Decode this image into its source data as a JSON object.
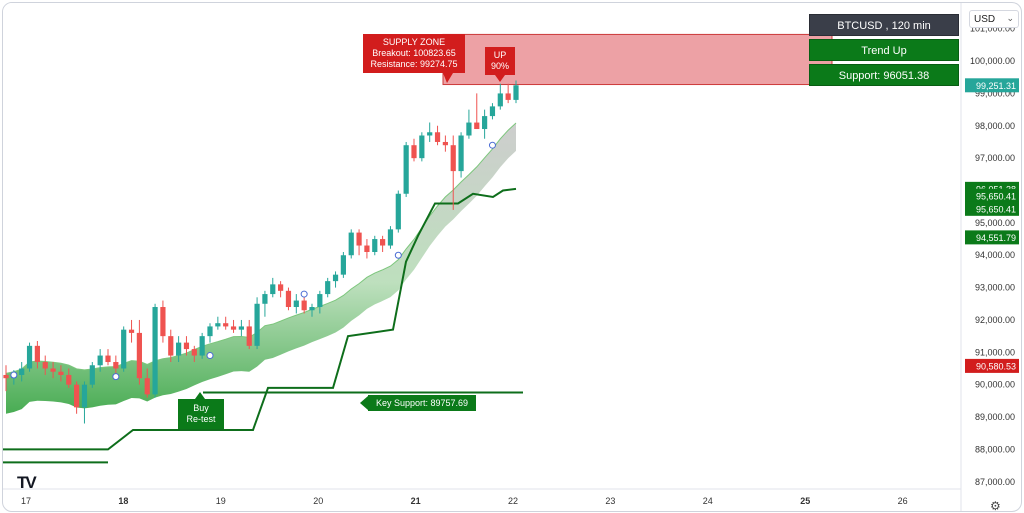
{
  "header": {
    "currency_select": "USD",
    "symbol_title": "BTCUSD , 120 min",
    "trend_label": "Trend Up",
    "support_label": "Support: 96051.38"
  },
  "annotations": {
    "supply_zone": {
      "title": "SUPPLY ZONE",
      "line1": "Breakout: 100823.65",
      "line2": "Resistance: 99274.75"
    },
    "up_badge": {
      "line1": "UP",
      "line2": "90%"
    },
    "buy_retest": {
      "line1": "Buy",
      "line2": "Re-test"
    },
    "key_support": "Key Support: 89757.69"
  },
  "colors": {
    "up_candle": "#26a69a",
    "down_candle": "#ef5350",
    "supply_fill": "#e8898f",
    "green_label": "#0b7a19",
    "red_label": "#d21d1d",
    "price_label_teal": "#26a69a"
  },
  "logo": "TV",
  "icons": {
    "settings": "gear-icon",
    "dropdown": "chevron-down-icon"
  },
  "chart_data": {
    "type": "candlestick",
    "symbol": "BTCUSD",
    "timeframe": "120 min",
    "x_tick_labels": [
      "17",
      "18",
      "19",
      "20",
      "21",
      "22",
      "23",
      "24",
      "25",
      "26"
    ],
    "y_tick_labels": [
      "87,000.00",
      "88,000.00",
      "89,000.00",
      "90,000.00",
      "91,000.00",
      "92,000.00",
      "93,000.00",
      "94,000.00",
      "95,000.00",
      "96,000.00",
      "97,000.00",
      "98,000.00",
      "99,000.00",
      "100,000.00",
      "101,000.00"
    ],
    "ylim": [
      86900,
      101300
    ],
    "price_labels": [
      {
        "text": "99,251.31",
        "value": 99251.31,
        "color": "#26a69a"
      },
      {
        "text": "96,051.38",
        "value": 96051.38,
        "color": "#0b7a19"
      },
      {
        "text": "95,650.41",
        "value": 95650.41,
        "color": "#0b7a19"
      },
      {
        "text": "95,650.41",
        "value": 95650.41,
        "color": "#0b7a19"
      },
      {
        "text": "94,551.79",
        "value": 94551.79,
        "color": "#0b7a19"
      },
      {
        "text": "90,580.53",
        "value": 90580.53,
        "color": "#d21d1d"
      }
    ],
    "supply_zone": {
      "low": 99274.75,
      "high": 100823.65
    },
    "key_support": 89757.69,
    "candles": [
      [
        90300,
        90600,
        89800,
        90200
      ],
      [
        90200,
        90450,
        90000,
        90300
      ],
      [
        90300,
        90700,
        90100,
        90500
      ],
      [
        90500,
        91300,
        90400,
        91200
      ],
      [
        91200,
        91350,
        90500,
        90700
      ],
      [
        90700,
        90900,
        90300,
        90500
      ],
      [
        90500,
        90700,
        90200,
        90400
      ],
      [
        90400,
        90600,
        90100,
        90300
      ],
      [
        90300,
        90500,
        89900,
        90000
      ],
      [
        90000,
        90100,
        89100,
        89300
      ],
      [
        89300,
        90100,
        88800,
        90000
      ],
      [
        90000,
        90700,
        89900,
        90600
      ],
      [
        90600,
        91100,
        90400,
        90900
      ],
      [
        90900,
        91100,
        90600,
        90700
      ],
      [
        90700,
        90900,
        90300,
        90500
      ],
      [
        90500,
        91800,
        90400,
        91700
      ],
      [
        91700,
        92000,
        91300,
        91600
      ],
      [
        91600,
        92000,
        90000,
        90200
      ],
      [
        90200,
        90500,
        89600,
        89700
      ],
      [
        89700,
        92500,
        89600,
        92400
      ],
      [
        92400,
        92600,
        91300,
        91500
      ],
      [
        91500,
        91700,
        90700,
        90900
      ],
      [
        90900,
        91500,
        90700,
        91300
      ],
      [
        91300,
        91500,
        90900,
        91100
      ],
      [
        91100,
        91200,
        90700,
        90900
      ],
      [
        90900,
        91600,
        90800,
        91500
      ],
      [
        91500,
        91900,
        91300,
        91800
      ],
      [
        91800,
        92100,
        91700,
        91900
      ],
      [
        91900,
        92100,
        91700,
        91800
      ],
      [
        91800,
        92000,
        91600,
        91700
      ],
      [
        91700,
        92000,
        91500,
        91800
      ],
      [
        91800,
        92000,
        91100,
        91200
      ],
      [
        91200,
        92700,
        91100,
        92500
      ],
      [
        92500,
        92900,
        92100,
        92800
      ],
      [
        92800,
        93300,
        92700,
        93100
      ],
      [
        93100,
        93200,
        92700,
        92900
      ],
      [
        92900,
        93000,
        92300,
        92400
      ],
      [
        92400,
        92800,
        92200,
        92600
      ],
      [
        92600,
        92700,
        92200,
        92300
      ],
      [
        92300,
        92500,
        92100,
        92400
      ],
      [
        92400,
        92900,
        92200,
        92800
      ],
      [
        92800,
        93300,
        92700,
        93200
      ],
      [
        93200,
        93500,
        93000,
        93400
      ],
      [
        93400,
        94100,
        93300,
        94000
      ],
      [
        94000,
        94800,
        93900,
        94700
      ],
      [
        94700,
        94800,
        94000,
        94300
      ],
      [
        94300,
        94500,
        93900,
        94100
      ],
      [
        94100,
        94600,
        94000,
        94500
      ],
      [
        94500,
        94600,
        94100,
        94300
      ],
      [
        94300,
        94900,
        94200,
        94800
      ],
      [
        94800,
        96000,
        94700,
        95900
      ],
      [
        95900,
        97500,
        95800,
        97400
      ],
      [
        97400,
        97600,
        96900,
        97000
      ],
      [
        97000,
        97800,
        96900,
        97700
      ],
      [
        97700,
        98100,
        97500,
        97800
      ],
      [
        97800,
        98000,
        97400,
        97500
      ],
      [
        97500,
        97700,
        97200,
        97400
      ],
      [
        97400,
        97700,
        95400,
        96600
      ],
      [
        96600,
        97800,
        96400,
        97700
      ],
      [
        97700,
        98500,
        97600,
        98100
      ],
      [
        98100,
        99000,
        97900,
        97900
      ],
      [
        97900,
        98500,
        97600,
        98300
      ],
      [
        98300,
        98700,
        98200,
        98600
      ],
      [
        98600,
        99300,
        98500,
        99000
      ],
      [
        99000,
        99300,
        98700,
        98800
      ],
      [
        98800,
        99400,
        98700,
        99251.31
      ]
    ],
    "dashed_band_lines": [
      {
        "name": "",
        "color": "#1a7a2a"
      }
    ],
    "step_support_levels": [
      88000,
      88600,
      89900,
      91700,
      92900,
      93800,
      94600,
      95100,
      95600,
      96051.38
    ]
  }
}
